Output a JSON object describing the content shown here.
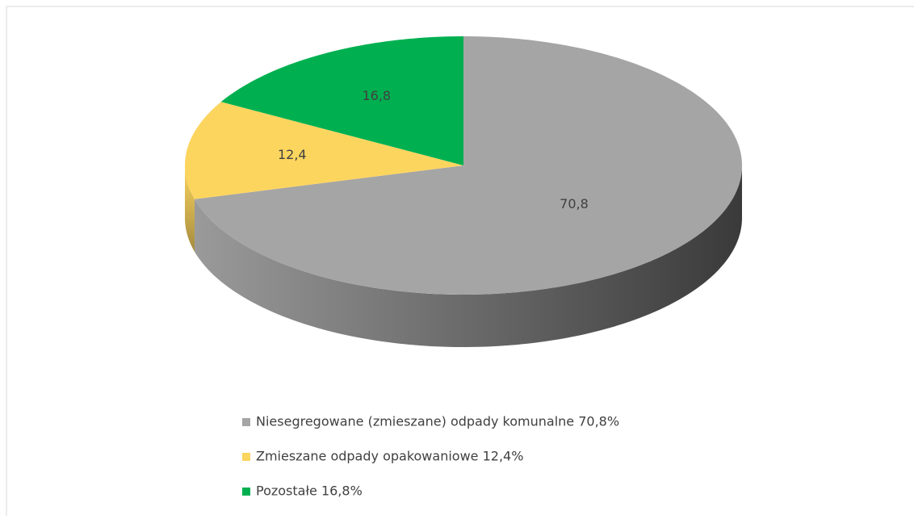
{
  "chart_data": {
    "type": "pie",
    "categories": [
      "Niesegregowane (zmieszane) odpady komunalne 70,8%",
      "Zmieszane odpady opakowaniowe 12,4%",
      "Pozostałe 16,8%"
    ],
    "values": [
      70.8,
      12.4,
      16.8
    ],
    "value_labels": [
      "70,8",
      "12,4",
      "16,8"
    ],
    "colors": [
      "#a5a5a5",
      "#fcd55f",
      "#00b050"
    ],
    "legend": "bottom"
  }
}
